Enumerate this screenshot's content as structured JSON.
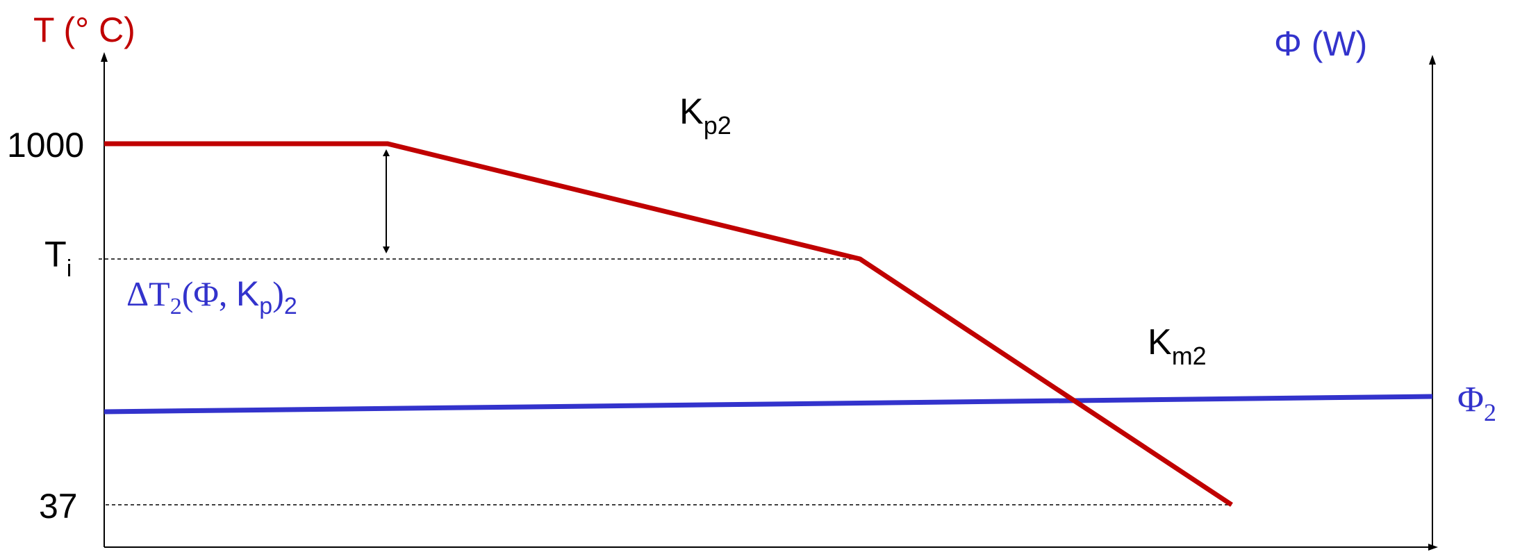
{
  "labels": {
    "left_axis_title": "T (°  C)",
    "right_axis_title": "Φ (W)",
    "tick_1000": "1000",
    "tick_ti_main": "T",
    "tick_ti_sub": "i",
    "tick_37": "37",
    "kp2_main": "K",
    "kp2_sub": "p2",
    "km2_main": "K",
    "km2_sub": "m2",
    "delta_prefix": "ΔT",
    "delta_sub1": "2",
    "delta_mid": "(Φ, ",
    "delta_k": "K",
    "delta_k_sub": "p",
    "delta_close": ")",
    "delta_sub2": "2",
    "phi2_main": "Φ",
    "phi2_sub": "2"
  },
  "colors": {
    "temperature": "#c00000",
    "flux": "#3333cc",
    "axis": "#000000"
  }
}
